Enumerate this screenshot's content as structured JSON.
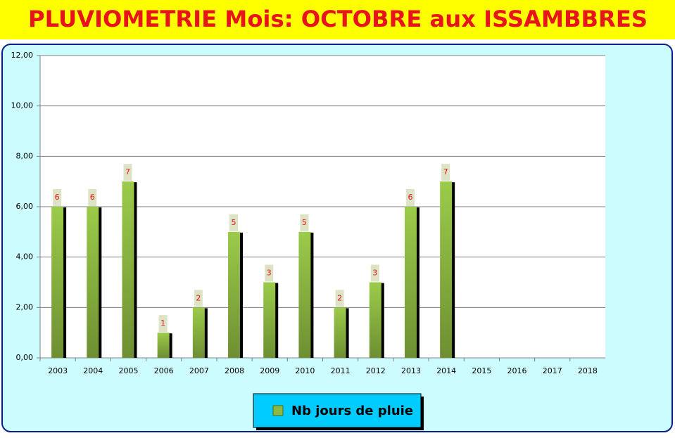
{
  "chart_data": {
    "type": "bar",
    "title": "PLUVIOMETRIE Mois: OCTOBRE aux ISSAMBBRES",
    "categories": [
      "2003",
      "2004",
      "2005",
      "2006",
      "2007",
      "2008",
      "2009",
      "2010",
      "2011",
      "2012",
      "2013",
      "2014",
      "2015",
      "2016",
      "2017",
      "2018"
    ],
    "series": [
      {
        "name": "Nb jours de pluie",
        "color": "#8db843",
        "values": [
          6,
          6,
          7,
          1,
          2,
          5,
          3,
          5,
          2,
          3,
          6,
          7,
          null,
          null,
          null,
          null
        ]
      }
    ],
    "ylim": [
      0,
      12
    ],
    "yticks": [
      {
        "value": 0,
        "label": "0,00"
      },
      {
        "value": 2,
        "label": "2,00"
      },
      {
        "value": 4,
        "label": "4,00"
      },
      {
        "value": 6,
        "label": "6,00"
      },
      {
        "value": 8,
        "label": "8,00"
      },
      {
        "value": 10,
        "label": "10,00"
      },
      {
        "value": 12,
        "label": "12,00"
      }
    ],
    "grid": true
  }
}
